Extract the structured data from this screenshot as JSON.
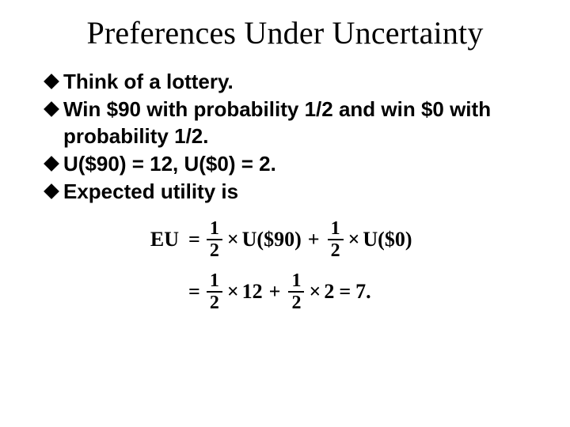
{
  "title": "Preferences Under Uncertainty",
  "bullets": {
    "b1": "Think of a lottery.",
    "b2": "Win $90 with probability 1/2 and win $0 with probability 1/2.",
    "b3": "U($90) = 12,   U($0) = 2.",
    "b4": "Expected utility is"
  },
  "equation": {
    "lhs": "EU",
    "eq": "=",
    "frac_num": "1",
    "frac_den": "2",
    "times": "×",
    "term1": "U($90)",
    "plus": "+",
    "term2": "U($0)",
    "val1": "12",
    "val2": "2",
    "result": "7."
  },
  "style": {
    "bg": "#ffffff",
    "text": "#000000",
    "title_fontsize": 40,
    "bullet_fontsize": 26,
    "eq_fontsize": 26
  }
}
